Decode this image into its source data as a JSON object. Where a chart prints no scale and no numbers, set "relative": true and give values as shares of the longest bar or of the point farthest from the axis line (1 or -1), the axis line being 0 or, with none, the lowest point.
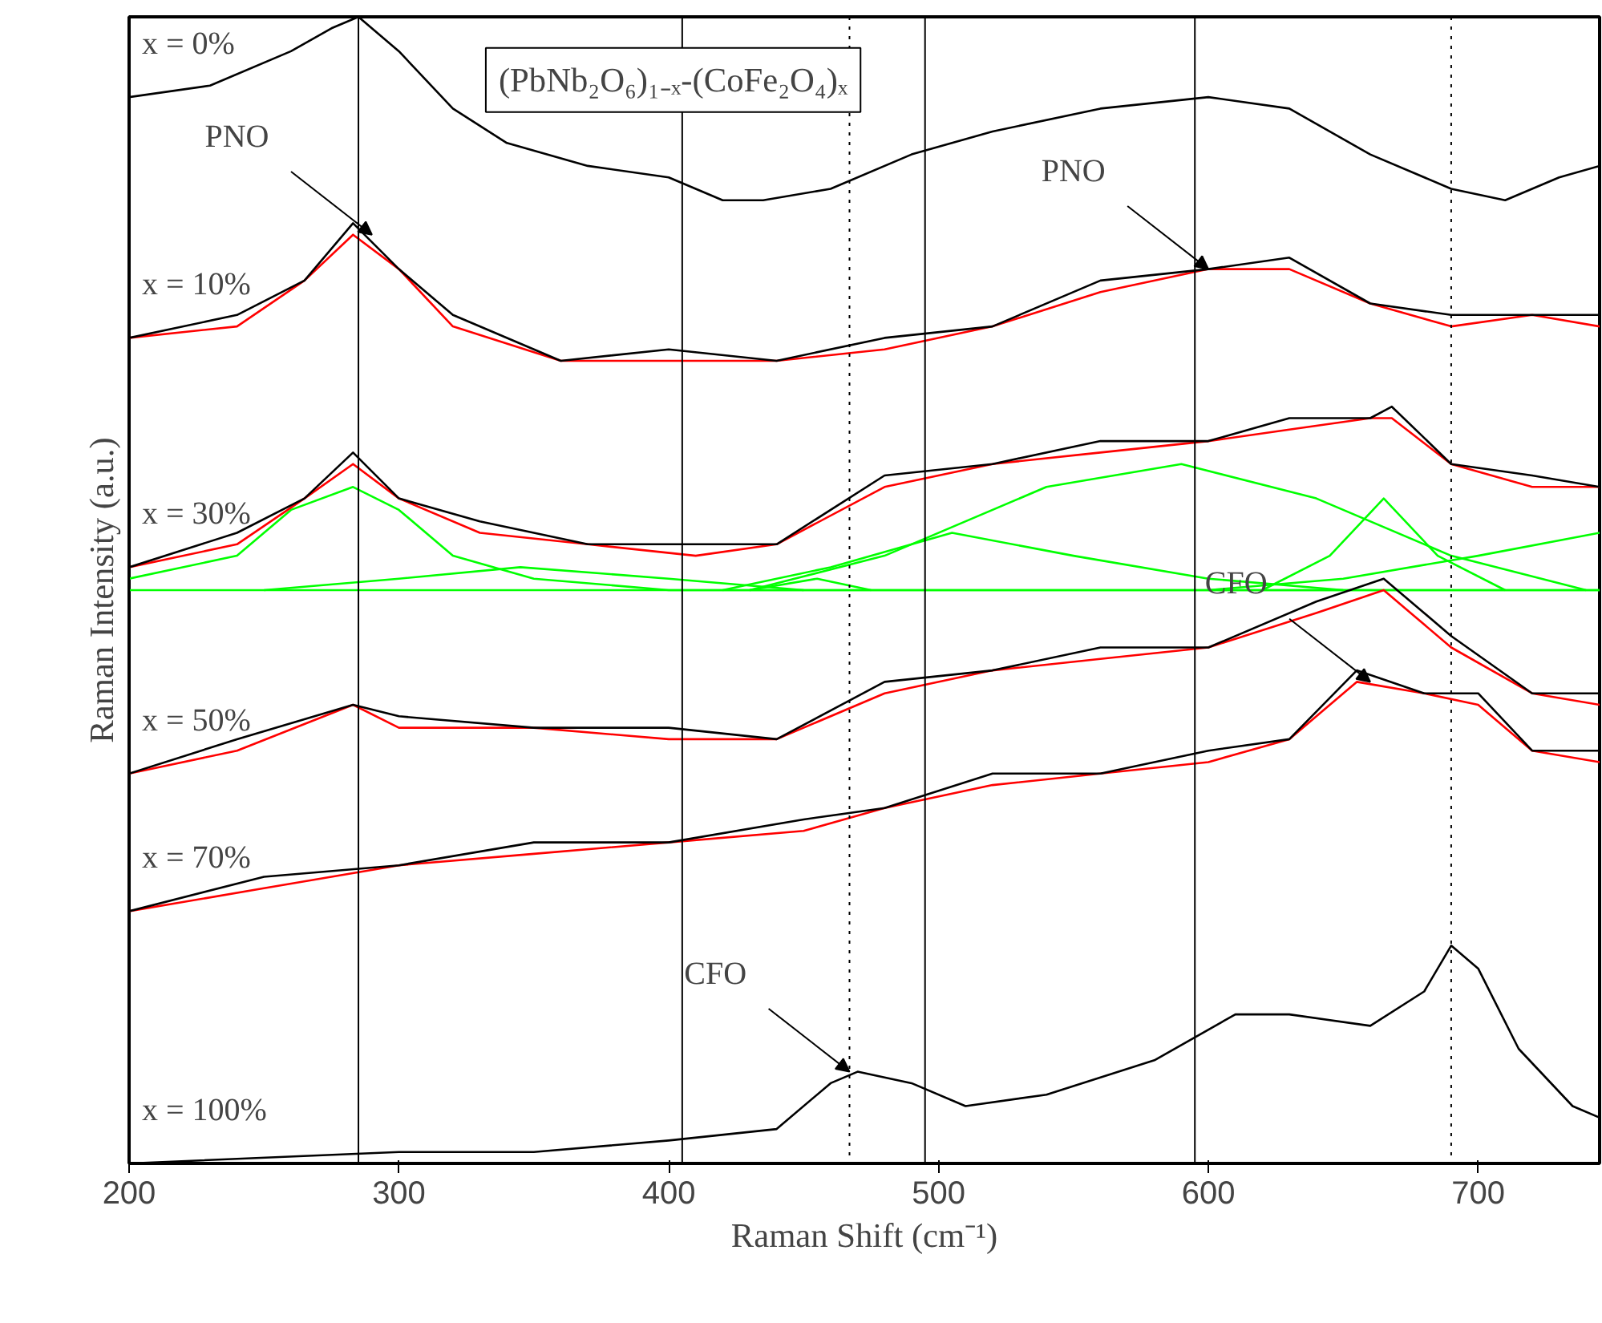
{
  "chart_data": {
    "type": "line",
    "relative": true,
    "title": "(PbNb₂O₆)₁₋ₓ-(CoFe₂O₄)ₓ",
    "xlabel": "Raman Shift (cm⁻¹)",
    "ylabel": "Raman Intensity (a.u.)",
    "xlim": [
      200,
      745
    ],
    "xticks": [
      200,
      300,
      400,
      500,
      600,
      700
    ],
    "grid": false,
    "tick_labels": "x",
    "line_style": "solid",
    "marker": "none",
    "series": [
      {
        "name": "x = 0%",
        "color": "#000000",
        "x": [
          200,
          230,
          260,
          275,
          285,
          300,
          320,
          340,
          370,
          400,
          420,
          435,
          460,
          490,
          520,
          560,
          600,
          630,
          660,
          690,
          710,
          730,
          745
        ],
        "values": [
          0.93,
          0.94,
          0.97,
          0.99,
          1.0,
          0.97,
          0.92,
          0.89,
          0.87,
          0.86,
          0.84,
          0.84,
          0.85,
          0.88,
          0.9,
          0.92,
          0.93,
          0.92,
          0.88,
          0.85,
          0.84,
          0.86,
          0.87
        ]
      },
      {
        "color": "#ff0000",
        "x": [
          200,
          240,
          265,
          283,
          300,
          320,
          360,
          400,
          440,
          480,
          520,
          560,
          600,
          630,
          660,
          690,
          720,
          745
        ],
        "values": [
          0.72,
          0.73,
          0.77,
          0.81,
          0.78,
          0.73,
          0.7,
          0.7,
          0.7,
          0.71,
          0.73,
          0.76,
          0.78,
          0.78,
          0.75,
          0.73,
          0.74,
          0.73
        ]
      },
      {
        "name": "x = 10%",
        "color": "#000000",
        "x": [
          200,
          240,
          265,
          283,
          300,
          320,
          360,
          400,
          440,
          480,
          520,
          560,
          600,
          630,
          660,
          690,
          720,
          745
        ],
        "values": [
          0.72,
          0.74,
          0.77,
          0.82,
          0.78,
          0.74,
          0.7,
          0.71,
          0.7,
          0.72,
          0.73,
          0.77,
          0.78,
          0.79,
          0.75,
          0.74,
          0.74,
          0.74
        ]
      },
      {
        "color": "#00ff00",
        "x": [
          200,
          240,
          260,
          283,
          300,
          320,
          350,
          400,
          745
        ],
        "values": [
          0.51,
          0.53,
          0.57,
          0.59,
          0.57,
          0.53,
          0.51,
          0.5,
          0.5
        ]
      },
      {
        "color": "#00ff00",
        "x": [
          250,
          300,
          345,
          400,
          450
        ],
        "values": [
          0.5,
          0.51,
          0.52,
          0.51,
          0.5
        ]
      },
      {
        "color": "#00ff00",
        "x": [
          430,
          455,
          475
        ],
        "values": [
          0.5,
          0.51,
          0.5
        ]
      },
      {
        "color": "#00ff00",
        "x": [
          420,
          460,
          505,
          550,
          600,
          650
        ],
        "values": [
          0.5,
          0.52,
          0.55,
          0.53,
          0.51,
          0.5
        ]
      },
      {
        "color": "#00ff00",
        "x": [
          430,
          480,
          540,
          590,
          640,
          690,
          740
        ],
        "values": [
          0.5,
          0.53,
          0.59,
          0.61,
          0.58,
          0.53,
          0.5
        ]
      },
      {
        "color": "#00ff00",
        "x": [
          620,
          645,
          665,
          685,
          710
        ],
        "values": [
          0.5,
          0.53,
          0.58,
          0.53,
          0.5
        ]
      },
      {
        "color": "#00ff00",
        "x": [
          600,
          650,
          700,
          745
        ],
        "values": [
          0.5,
          0.51,
          0.53,
          0.55
        ]
      },
      {
        "color": "#00ff00",
        "x": [
          200,
          745
        ],
        "values": [
          0.5,
          0.5
        ]
      },
      {
        "color": "#ff0000",
        "x": [
          200,
          240,
          265,
          283,
          300,
          330,
          370,
          410,
          440,
          480,
          520,
          560,
          600,
          630,
          660,
          668,
          690,
          720,
          745
        ],
        "values": [
          0.52,
          0.54,
          0.58,
          0.61,
          0.58,
          0.55,
          0.54,
          0.53,
          0.54,
          0.59,
          0.61,
          0.62,
          0.63,
          0.64,
          0.65,
          0.65,
          0.61,
          0.59,
          0.59
        ]
      },
      {
        "name": "x = 30%",
        "color": "#000000",
        "x": [
          200,
          240,
          265,
          283,
          300,
          330,
          370,
          410,
          440,
          480,
          520,
          560,
          600,
          630,
          660,
          668,
          690,
          720,
          745
        ],
        "values": [
          0.52,
          0.55,
          0.58,
          0.62,
          0.58,
          0.56,
          0.54,
          0.54,
          0.54,
          0.6,
          0.61,
          0.63,
          0.63,
          0.65,
          0.65,
          0.66,
          0.61,
          0.6,
          0.59
        ]
      },
      {
        "color": "#ff0000",
        "x": [
          200,
          240,
          283,
          300,
          350,
          400,
          440,
          480,
          520,
          560,
          600,
          640,
          665,
          690,
          720,
          745
        ],
        "values": [
          0.34,
          0.36,
          0.4,
          0.38,
          0.38,
          0.37,
          0.37,
          0.41,
          0.43,
          0.44,
          0.45,
          0.48,
          0.5,
          0.45,
          0.41,
          0.4
        ]
      },
      {
        "name": "x = 50%",
        "color": "#000000",
        "x": [
          200,
          240,
          283,
          300,
          350,
          400,
          440,
          480,
          520,
          560,
          600,
          640,
          665,
          690,
          720,
          745
        ],
        "values": [
          0.34,
          0.37,
          0.4,
          0.39,
          0.38,
          0.38,
          0.37,
          0.42,
          0.43,
          0.45,
          0.45,
          0.49,
          0.51,
          0.46,
          0.41,
          0.41
        ]
      },
      {
        "color": "#ff0000",
        "x": [
          200,
          250,
          300,
          350,
          400,
          450,
          480,
          520,
          560,
          600,
          630,
          655,
          680,
          700,
          720,
          745
        ],
        "values": [
          0.22,
          0.24,
          0.26,
          0.27,
          0.28,
          0.29,
          0.31,
          0.33,
          0.34,
          0.35,
          0.37,
          0.42,
          0.41,
          0.4,
          0.36,
          0.35
        ]
      },
      {
        "name": "x = 70%",
        "color": "#000000",
        "x": [
          200,
          250,
          300,
          350,
          400,
          450,
          480,
          520,
          560,
          600,
          630,
          655,
          680,
          700,
          720,
          745
        ],
        "values": [
          0.22,
          0.25,
          0.26,
          0.28,
          0.28,
          0.3,
          0.31,
          0.34,
          0.34,
          0.36,
          0.37,
          0.43,
          0.41,
          0.41,
          0.36,
          0.36
        ]
      },
      {
        "name": "x = 100%",
        "color": "#000000",
        "x": [
          200,
          300,
          350,
          400,
          440,
          460,
          470,
          490,
          510,
          540,
          580,
          610,
          630,
          660,
          680,
          690,
          700,
          715,
          735,
          745
        ],
        "values": [
          0.0,
          0.01,
          0.01,
          0.02,
          0.03,
          0.07,
          0.08,
          0.07,
          0.05,
          0.06,
          0.09,
          0.13,
          0.13,
          0.12,
          0.15,
          0.19,
          0.17,
          0.1,
          0.05,
          0.04
        ]
      }
    ],
    "ref_lines": [
      {
        "axis": "x",
        "value": 285,
        "color": "#000000",
        "line_style": "solid"
      },
      {
        "axis": "x",
        "value": 405,
        "color": "#000000",
        "line_style": "solid"
      },
      {
        "axis": "x",
        "value": 495,
        "color": "#000000",
        "line_style": "solid"
      },
      {
        "axis": "x",
        "value": 595,
        "color": "#000000",
        "line_style": "solid"
      },
      {
        "axis": "x",
        "value": 467,
        "color": "#000000",
        "line_style": "dotted"
      },
      {
        "axis": "x",
        "value": 690,
        "color": "#000000",
        "line_style": "dotted"
      }
    ],
    "annotations": [
      {
        "text": "PNO",
        "x": 290,
        "y": 0.81
      },
      {
        "text": "PNO",
        "x": 600,
        "y": 0.78
      },
      {
        "text": "CFO",
        "x": 467,
        "y": 0.08
      },
      {
        "text": "CFO",
        "x": 660,
        "y": 0.42
      }
    ]
  }
}
